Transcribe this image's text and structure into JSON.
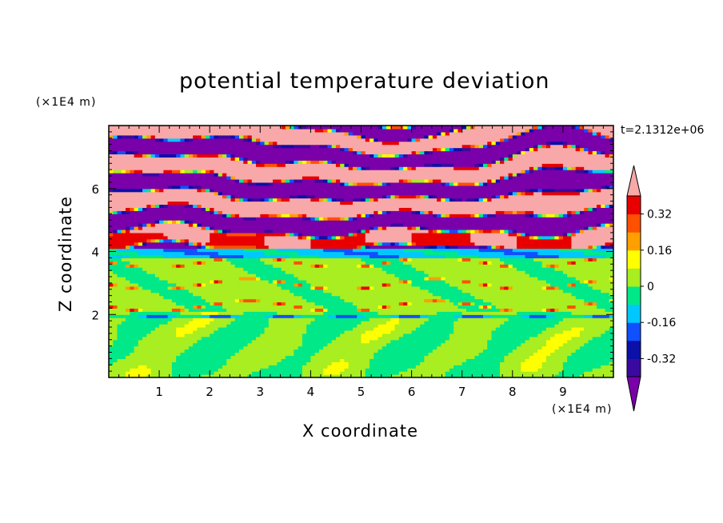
{
  "chart_data": {
    "type": "heatmap",
    "title": "potential temperature deviation",
    "xlabel": "X coordinate",
    "ylabel": "Z coordinate",
    "x_unit": "(×1E4 m)",
    "y_unit": "(×1E4 m)",
    "time_label": "t=2.1312e+06",
    "x_ticks": [
      "1",
      "2",
      "3",
      "4",
      "5",
      "6",
      "7",
      "8",
      "9"
    ],
    "y_ticks": [
      "2",
      "4",
      "6"
    ],
    "xlim": [
      0,
      10
    ],
    "ylim": [
      0,
      8
    ],
    "colorbar": {
      "labels": [
        "0.32",
        "0.16",
        "0",
        "-0.16",
        "-0.32"
      ],
      "label_levels": [
        0.32,
        0.16,
        0,
        -0.16,
        -0.32
      ],
      "levels": [
        -0.4,
        -0.32,
        -0.24,
        -0.16,
        -0.08,
        0,
        0.08,
        0.16,
        0.24,
        0.32,
        0.4
      ],
      "colors": [
        "#7a00aa",
        "#3a0aa0",
        "#0a10a8",
        "#1050ff",
        "#00c8ff",
        "#00e888",
        "#a8ee20",
        "#ffff00",
        "#ffa000",
        "#ff5000",
        "#e80000",
        "#f8a8a8"
      ],
      "extend": "both"
    },
    "layers": [
      {
        "z_range": [
          4.0,
          8.0
        ],
        "description": "alternating banded layers",
        "dominant_values": [
          0.4,
          -0.4
        ]
      },
      {
        "z_range": [
          3.8,
          4.1
        ],
        "description": "thin cold band",
        "dominant_values": [
          -0.2,
          -0.1
        ]
      },
      {
        "z_range": [
          2.0,
          3.8
        ],
        "description": "near-zero region",
        "dominant_values": [
          0.0
        ]
      },
      {
        "z_range": [
          0.0,
          2.0
        ],
        "description": "near-zero region with slightly positive eddies",
        "dominant_values": [
          0.0,
          0.05
        ]
      }
    ]
  }
}
